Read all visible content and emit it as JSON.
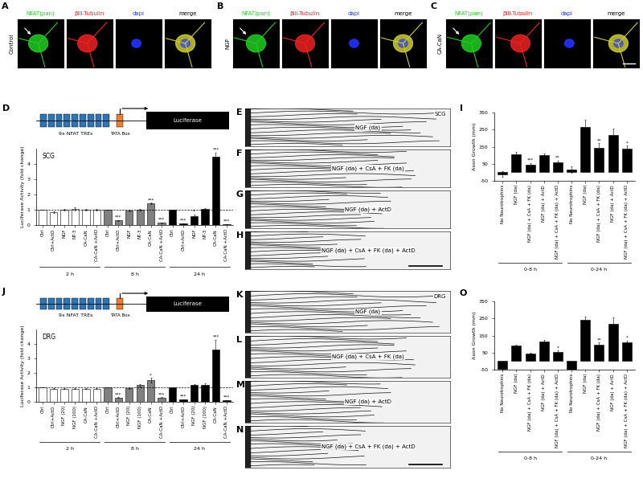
{
  "micrographs": {
    "channels": [
      {
        "label": "NFAT(pan)",
        "color": "#22cc22"
      },
      {
        "label": "βIII-Tubulin",
        "color": "#ee2222"
      },
      {
        "label": "dapi",
        "color": "#2233ff"
      },
      {
        "label": "merge",
        "color": "#000000"
      }
    ],
    "panels": [
      {
        "panel": "A",
        "condition": "Control"
      },
      {
        "panel": "B",
        "condition": "NGF"
      },
      {
        "panel": "C",
        "condition": "CA-CaN"
      }
    ]
  },
  "axon_images": [
    {
      "region": "SCG",
      "panels": [
        {
          "panel": "E",
          "condition": "NGF (da)"
        },
        {
          "panel": "F",
          "condition": "NGF (da) + CsA + FK (da)"
        },
        {
          "panel": "G",
          "condition": "NGF (da) + ActD"
        },
        {
          "panel": "H",
          "condition": "NGF (da) + CsA + FK (da) + ActD"
        }
      ]
    },
    {
      "region": "DRG",
      "panels": [
        {
          "panel": "K",
          "condition": "NGF (da)"
        },
        {
          "panel": "L",
          "condition": "NGF (da) + CsA + FK (da)"
        },
        {
          "panel": "M",
          "condition": "NGF (da) + ActD"
        },
        {
          "panel": "N",
          "condition": "NGF (da) + CsA + FK (da) + ActD"
        }
      ]
    }
  ],
  "chart_data": [
    {
      "type": "bar",
      "panel": "D",
      "title": "SCG",
      "schematic": {
        "repeats": 9,
        "repeat_label": "9x NFAT TREs",
        "box_label": "TATA Box",
        "gene_label": "Luciferase"
      },
      "ylabel": "Luciferase Activity (fold change)",
      "groups": [
        "2 h",
        "8 h",
        "24 h"
      ],
      "categories": [
        "Ctrl",
        "Ctrl+ActD",
        "NGF",
        "NT-3",
        "CA-CaN",
        "CA-CaN +ActD",
        "Ctrl",
        "Ctrl+ActD",
        "NGF",
        "NT-3",
        "CA-CaN",
        "CA-CaN +ActD",
        "Ctrl",
        "Ctrl+ActD",
        "NGF",
        "NT-3",
        "CA-CaN",
        "CA-CaN +ActD"
      ],
      "values": [
        1,
        0.85,
        1.0,
        1.05,
        1.0,
        1.0,
        1,
        0.3,
        0.95,
        1.0,
        1.4,
        0.15,
        1,
        0.1,
        0.6,
        1.05,
        4.5,
        0.05
      ],
      "errors": [
        0,
        0.05,
        0.05,
        0.1,
        0.05,
        0.03,
        0,
        0.03,
        0.05,
        0.03,
        0.05,
        0.02,
        0,
        0.02,
        0.1,
        0.05,
        0.25,
        0.02
      ],
      "significance": [
        null,
        null,
        null,
        null,
        null,
        null,
        null,
        "***",
        null,
        null,
        "***",
        "***",
        null,
        "***",
        "*",
        null,
        "***",
        "***"
      ],
      "colors": [
        "#ffffff",
        "#ffffff",
        "#ffffff",
        "#ffffff",
        "#ffffff",
        "#ffffff",
        "#808080",
        "#808080",
        "#808080",
        "#808080",
        "#808080",
        "#808080",
        "#000000",
        "#000000",
        "#000000",
        "#000000",
        "#000000",
        "#000000"
      ],
      "reference": 1,
      "ylim": [
        0,
        5
      ],
      "yticks": [
        0,
        1,
        2,
        3,
        4
      ]
    },
    {
      "type": "bar",
      "panel": "I",
      "ylabel": "Axon Growth (mm)",
      "groups": [
        "0-8 h",
        "0-24 h"
      ],
      "categories": [
        "No Neurotrophins",
        "NGF (da)",
        "NGF (da) + CsA + FK (da)",
        "NGF (da) + ActD",
        "NGF (da) + CsA + FK (da) + ActD",
        "No Neurotrophins",
        "NGF (da)",
        "NGF (da) + CsA + FK (da)",
        "NGF (da) + ActD",
        "NGF (da) + CsA + FK (da) + ActD"
      ],
      "values": [
        -10,
        105,
        45,
        100,
        60,
        15,
        265,
        145,
        220,
        140
      ],
      "errors": [
        15,
        15,
        10,
        10,
        10,
        20,
        45,
        25,
        35,
        15
      ],
      "significance": [
        null,
        null,
        "***",
        null,
        "**",
        null,
        null,
        "**",
        null,
        "*"
      ],
      "colors": [
        "#000000",
        "#000000",
        "#000000",
        "#000000",
        "#000000",
        "#000000",
        "#000000",
        "#000000",
        "#000000",
        "#000000"
      ],
      "ylim": [
        -50,
        350
      ],
      "yticks": [
        -50,
        50,
        150,
        250,
        350
      ]
    },
    {
      "type": "bar",
      "panel": "J",
      "title": "DRG",
      "schematic": {
        "repeats": 9,
        "repeat_label": "9x NFAT TREs",
        "box_label": "TATA Box",
        "gene_label": "Luciferase"
      },
      "ylabel": "Luciferase Activity (fold change)",
      "groups": [
        "2 h",
        "8 h",
        "24 h"
      ],
      "categories": [
        "Ctrl",
        "Ctrl+ActD",
        "NGF (20)",
        "NGF (100)",
        "CA-CaN",
        "CA-CaN +ActD",
        "Ctrl",
        "Ctrl+ActD",
        "NGF (20)",
        "NGF (100)",
        "CA-CaN",
        "CA-CaN +ActD",
        "Ctrl",
        "Ctrl+ActD",
        "NGF (20)",
        "NGF (100)",
        "CA-CaN",
        "CA-CaN +ActD"
      ],
      "values": [
        1,
        0.9,
        0.9,
        0.9,
        0.9,
        0.9,
        1,
        0.3,
        0.95,
        1.15,
        1.5,
        0.3,
        1,
        0.15,
        1.15,
        1.15,
        3.6,
        0.1
      ],
      "errors": [
        0,
        0.03,
        0.03,
        0.03,
        0.03,
        0.03,
        0,
        0.03,
        0.05,
        0.08,
        0.15,
        0.03,
        0,
        0.02,
        0.1,
        0.15,
        0.7,
        0.02
      ],
      "significance": [
        null,
        null,
        null,
        null,
        null,
        null,
        null,
        "***",
        null,
        null,
        "*",
        "***",
        null,
        "***",
        null,
        null,
        "***",
        "***"
      ],
      "colors": [
        "#ffffff",
        "#ffffff",
        "#ffffff",
        "#ffffff",
        "#ffffff",
        "#ffffff",
        "#808080",
        "#808080",
        "#808080",
        "#808080",
        "#808080",
        "#808080",
        "#000000",
        "#000000",
        "#000000",
        "#000000",
        "#000000",
        "#000000"
      ],
      "reference": 1,
      "ylim": [
        0,
        5
      ],
      "yticks": [
        0,
        1,
        2,
        3,
        4
      ]
    },
    {
      "type": "bar",
      "panel": "O",
      "ylabel": "Axon Growth (mm)",
      "groups": [
        "0-8 h",
        "0-24 h"
      ],
      "categories": [
        "No Neurotrophins",
        "NGF (da)",
        "NGF (da) + CsA + FK (da)",
        "NGF (da) + ActD",
        "NGF (da) + CsA + FK (da) + ActD",
        "No Neurotrophins",
        "NGF (da)",
        "NGF (da) + CsA + FK (da)",
        "NGF (da) + ActD",
        "NGF (da) + CsA + FK (da) + ActD"
      ],
      "values": [
        -45,
        90,
        45,
        115,
        55,
        -50,
        240,
        95,
        220,
        110
      ],
      "errors": [
        5,
        5,
        3,
        10,
        8,
        10,
        20,
        15,
        35,
        10
      ],
      "significance": [
        null,
        null,
        null,
        null,
        "*",
        null,
        null,
        "**",
        null,
        "*"
      ],
      "colors": [
        "#000000",
        "#000000",
        "#000000",
        "#000000",
        "#000000",
        "#000000",
        "#000000",
        "#000000",
        "#000000",
        "#000000"
      ],
      "ylim": [
        -50,
        350
      ],
      "yticks": [
        -50,
        50,
        150,
        250,
        350
      ]
    }
  ]
}
